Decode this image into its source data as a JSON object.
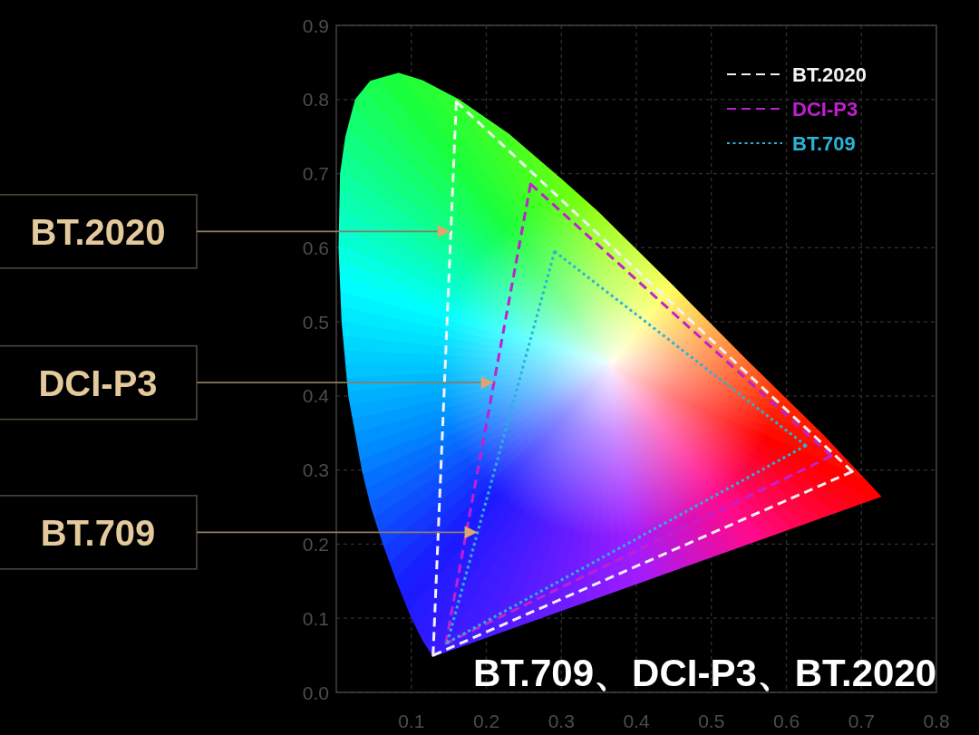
{
  "chart_data": {
    "type": "line",
    "title": "BT.709、DCI-P3、BT.2020",
    "xlim": [
      0,
      0.8
    ],
    "ylim": [
      0,
      0.9
    ],
    "xticks": [
      0.1,
      0.2,
      0.3,
      0.4,
      0.5,
      0.6,
      0.7,
      0.8
    ],
    "yticks": [
      {
        "value": 0,
        "label": "0.0"
      },
      0.1,
      0.2,
      0.3,
      0.4,
      0.5,
      0.6,
      0.7,
      0.8,
      0.9
    ],
    "grid": true,
    "legend": "top right",
    "series": [
      {
        "type": "area",
        "color": "#19ff3c",
        "x": [
          0.129,
          0.115,
          0.1,
          0.08,
          0.062,
          0.046,
          0.034,
          0.016,
          0.007,
          0.003,
          0.005,
          0.012,
          0.025,
          0.045,
          0.083,
          0.115,
          0.164,
          0.23,
          0.3,
          0.349,
          0.45,
          0.55,
          0.65,
          0.727,
          0.129
        ],
        "values": [
          0.048,
          0.07,
          0.1,
          0.15,
          0.2,
          0.25,
          0.3,
          0.4,
          0.5,
          0.6,
          0.7,
          0.75,
          0.8,
          0.825,
          0.836,
          0.826,
          0.8,
          0.754,
          0.693,
          0.649,
          0.548,
          0.446,
          0.347,
          0.264,
          0.048
        ]
      },
      {
        "name": "BT.2020",
        "color": "#f2f2f2",
        "line_style": "dashed",
        "x": [
          0.129,
          0.16,
          0.688,
          0.129
        ],
        "values": [
          0.05,
          0.797,
          0.298,
          0.05
        ]
      },
      {
        "name": "DCI-P3",
        "color": "#c21fd1",
        "line_style": "dashed",
        "x": [
          0.146,
          0.259,
          0.66,
          0.146
        ],
        "values": [
          0.066,
          0.686,
          0.319,
          0.066
        ]
      },
      {
        "name": "BT.709",
        "color": "#2ab3d6",
        "line_style": "dotted",
        "x": [
          0.148,
          0.291,
          0.626,
          0.148
        ],
        "values": [
          0.067,
          0.595,
          0.333,
          0.067
        ]
      }
    ],
    "annotations": [
      {
        "text": "BT.2020",
        "x": 0.152,
        "y": 0.622
      },
      {
        "text": "DCI-P3",
        "x": 0.21,
        "y": 0.418
      },
      {
        "text": "BT.709",
        "x": 0.188,
        "y": 0.216
      }
    ]
  }
}
